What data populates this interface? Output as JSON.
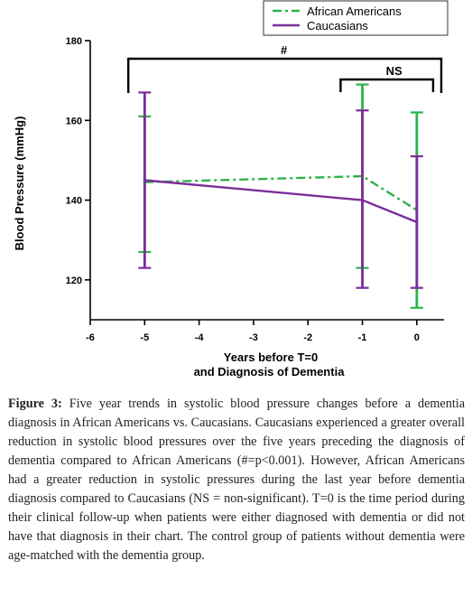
{
  "chart_data": {
    "type": "line",
    "x": [
      -5,
      -1,
      0
    ],
    "series": [
      {
        "name": "African Americans",
        "color": "#2db34a",
        "line_style": "dash-dot",
        "values": [
          144.5,
          146,
          137.5
        ],
        "error_low": [
          127,
          123,
          113
        ],
        "error_high": [
          161,
          169,
          162
        ]
      },
      {
        "name": "Caucasians",
        "color": "#7b2d9c",
        "line_style": "solid",
        "values": [
          145,
          140,
          134.5
        ],
        "error_low": [
          123,
          118,
          118
        ],
        "error_high": [
          167,
          162.5,
          151
        ]
      }
    ],
    "xlim": [
      -6,
      0.5
    ],
    "ylim": [
      110,
      180
    ],
    "x_ticks": [
      -6,
      -5,
      -4,
      -3,
      -2,
      -1,
      0
    ],
    "y_ticks": [
      120,
      140,
      160,
      180
    ],
    "xlabel_line1": "Years before T=0",
    "xlabel_line2": "and Diagnosis of Dementia",
    "ylabel": "Blood Pressure (mmHg)",
    "legend_position": "top-right",
    "brackets": [
      {
        "label": "#",
        "from": -5.3,
        "to": 0.45
      },
      {
        "label": "NS",
        "from": -1.4,
        "to": 0.3
      }
    ]
  },
  "caption": {
    "label": "Figure 3:",
    "text": " Five year trends in systolic blood pressure changes before a dementia diagnosis in African Americans vs. Caucasians. Caucasians experienced a greater overall reduction in systolic blood pressures over the five years preceding the diagnosis of dementia compared to African Americans (#=p<0.001). However, African Americans had a greater reduction in systolic pressures during the last year before dementia diagnosis compared to Caucasians (NS = non-significant). T=0 is the time period during their clinical follow-up when patients were either diagnosed with dementia or did not have that diagnosis in their chart. The control group of patients without dementia were age-matched with the dementia group."
  }
}
